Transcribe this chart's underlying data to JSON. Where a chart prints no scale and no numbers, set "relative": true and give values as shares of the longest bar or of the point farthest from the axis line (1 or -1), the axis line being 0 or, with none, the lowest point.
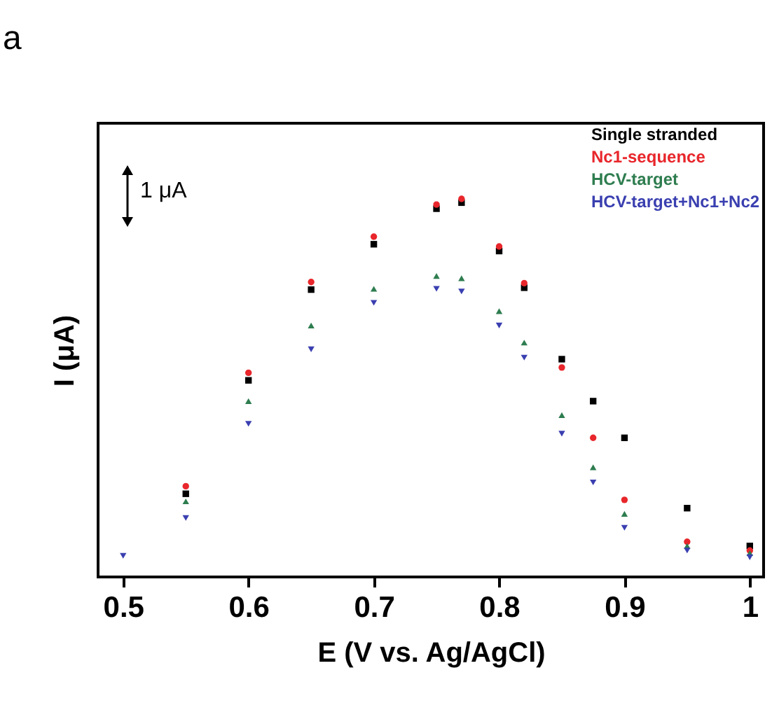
{
  "chart_data": {
    "type": "scatter",
    "title": "a",
    "xlabel": "E (V vs. Ag/AgCl)",
    "ylabel": "I (μA)",
    "legend": "top right",
    "relative": true,
    "annotations": [
      "1 μA"
    ],
    "xlim": [
      0.48,
      1.011
    ],
    "xticks": [
      0.5,
      0.6,
      0.7,
      0.8,
      0.9,
      1
    ],
    "x": [
      0.5,
      0.55,
      0.6,
      0.65,
      0.7,
      0.75,
      0.77,
      0.8,
      0.82,
      0.85,
      0.875,
      0.9,
      0.95,
      1.0
    ],
    "series": [
      {
        "name": "Single stranded",
        "color": "#000000",
        "marker": "square",
        "values": [
          null,
          0.22,
          0.52,
          0.76,
          0.88,
          0.974,
          0.99,
          0.862,
          0.765,
          0.576,
          0.465,
          0.368,
          0.182,
          0.082
        ]
      },
      {
        "name": "Nc1-sequence",
        "color": "#e8262b",
        "marker": "circle",
        "values": [
          null,
          0.24,
          0.54,
          0.78,
          0.9,
          0.985,
          1.0,
          0.874,
          0.777,
          0.554,
          0.368,
          0.204,
          0.093,
          0.07
        ]
      },
      {
        "name": "HCV-target",
        "color": "#2e7d4f",
        "marker": "triangle",
        "values": [
          null,
          0.2,
          0.465,
          0.665,
          0.762,
          0.796,
          0.79,
          0.703,
          0.62,
          0.428,
          0.29,
          0.167,
          0.082,
          0.063
        ]
      },
      {
        "name": "HCV-target+Nc1+Nc2",
        "color": "#3a3fb0",
        "marker": "triangle-down",
        "values": [
          0.056,
          0.156,
          0.405,
          0.602,
          0.725,
          0.762,
          0.755,
          0.665,
          0.58,
          0.379,
          0.25,
          0.13,
          0.07,
          0.052
        ]
      }
    ]
  }
}
